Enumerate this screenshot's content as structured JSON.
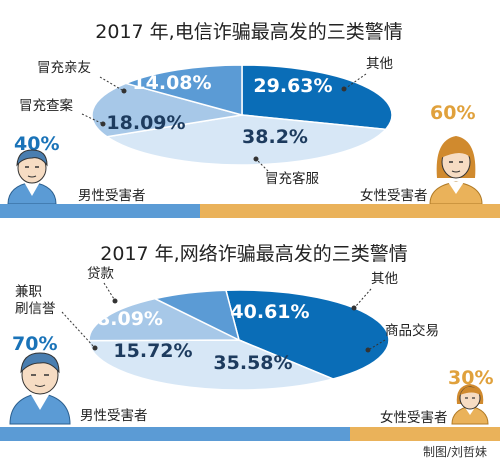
{
  "chart_data": [
    {
      "type": "pie",
      "title": "2017 年,电信诈骗最高发的三类警情",
      "slices": [
        {
          "label": "其他",
          "value": 29.63,
          "display": "29.63%",
          "color": "#0a6db7"
        },
        {
          "label": "冒充客服",
          "value": 38.2,
          "display": "38.2%",
          "color": "#d7e7f6"
        },
        {
          "label": "冒充查案",
          "value": 18.09,
          "display": "18.09%",
          "color": "#a7c8e8"
        },
        {
          "label": "冒充亲友",
          "value": 14.08,
          "display": "14.08%",
          "color": "#5b9bd5"
        }
      ],
      "gender": {
        "male": {
          "label": "男性受害者",
          "percent": 40,
          "display": "40%",
          "color": "#5b9bd5"
        },
        "female": {
          "label": "女性受害者",
          "percent": 60,
          "display": "60%",
          "color": "#eab25a"
        }
      }
    },
    {
      "type": "pie",
      "title": "2017 年,网络诈骗最高发的三类警情",
      "slices": [
        {
          "label": "其他",
          "value": 40.61,
          "display": "40.61%",
          "color": "#0a6db7"
        },
        {
          "label": "商品交易",
          "value": 35.58,
          "display": "35.58%",
          "color": "#d7e7f6"
        },
        {
          "label": "兼职刷信誉",
          "value": 15.72,
          "display": "15.72%",
          "color": "#a7c8e8"
        },
        {
          "label": "贷款",
          "value": 8.09,
          "display": "8.09%",
          "color": "#5b9bd5"
        }
      ],
      "gender": {
        "male": {
          "label": "男性受害者",
          "percent": 70,
          "display": "70%",
          "color": "#5b9bd5"
        },
        "female": {
          "label": "女性受害者",
          "percent": 30,
          "display": "30%",
          "color": "#eab25a"
        }
      }
    }
  ],
  "labels": {
    "c1_other": "其他",
    "c1_service": "冒充客服",
    "c1_case": "冒充查案",
    "c1_friend": "冒充亲友",
    "c2_other": "其他",
    "c2_trade": "商品交易",
    "c2_loan": "贷款",
    "c2_parttime_1": "兼职",
    "c2_parttime_2": "刷信誉"
  },
  "credit": "制图/刘哲妹",
  "colors": {
    "dark_blue": "#0a6db7",
    "mid_blue": "#5b9bd5",
    "light_blue": "#a7c8e8",
    "pale_blue": "#d7e7f6",
    "female_orange": "#eab25a",
    "male_blue": "#5b9bd5"
  }
}
